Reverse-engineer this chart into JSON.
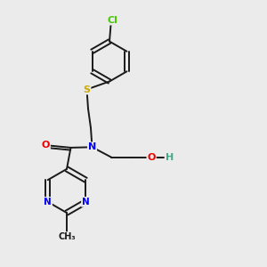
{
  "background_color": "#ebebeb",
  "bond_color": "#1a1a1a",
  "atom_colors": {
    "N": "#0000ee",
    "O": "#ee0000",
    "S": "#ccaa00",
    "Cl": "#44cc00",
    "H": "#44aa88",
    "C": "#1a1a1a"
  }
}
